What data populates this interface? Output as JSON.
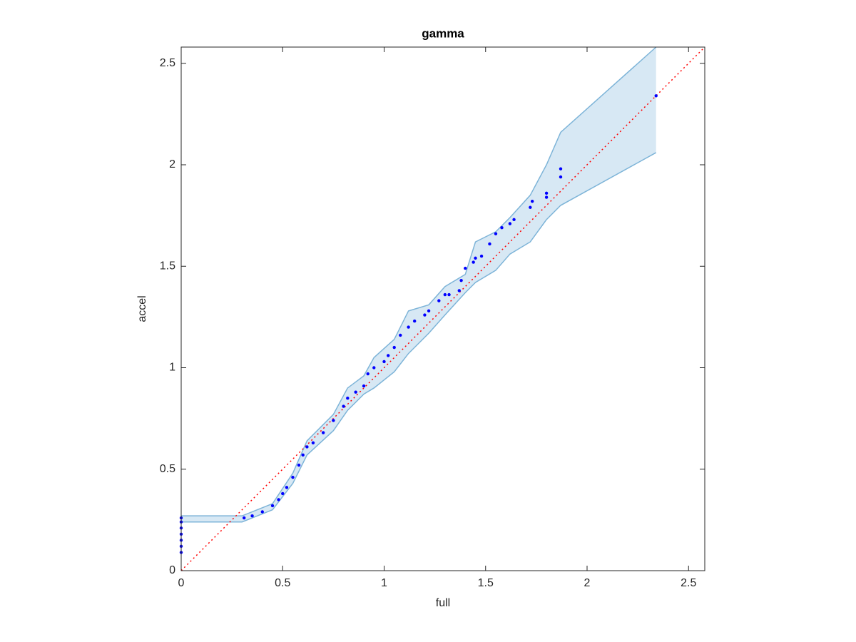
{
  "chart_data": {
    "type": "scatter",
    "title": "gamma",
    "x_label": "full",
    "y_label": "accel",
    "xlim": [
      0,
      2.58
    ],
    "ylim": [
      0,
      2.58
    ],
    "xticks": [
      0,
      0.5,
      1,
      1.5,
      2,
      2.5
    ],
    "yticks": [
      0,
      0.5,
      1,
      1.5,
      2,
      2.5
    ],
    "series": [
      {
        "color": "#0000ff",
        "x": [
          0,
          0,
          0,
          0,
          0,
          0,
          0,
          0.31,
          0.35,
          0.4,
          0.45,
          0.48,
          0.5,
          0.52,
          0.55,
          0.58,
          0.6,
          0.62,
          0.65,
          0.7,
          0.75,
          0.8,
          0.82,
          0.86,
          0.9,
          0.92,
          0.95,
          1.0,
          1.02,
          1.05,
          1.08,
          1.12,
          1.15,
          1.2,
          1.22,
          1.27,
          1.3,
          1.32,
          1.37,
          1.38,
          1.4,
          1.44,
          1.45,
          1.48,
          1.52,
          1.55,
          1.58,
          1.62,
          1.64,
          1.72,
          1.73,
          1.8,
          1.8,
          1.87,
          1.87,
          2.34
        ],
        "values": [
          0.09,
          0.12,
          0.15,
          0.18,
          0.21,
          0.24,
          0.26,
          0.26,
          0.27,
          0.29,
          0.32,
          0.35,
          0.38,
          0.41,
          0.46,
          0.52,
          0.57,
          0.61,
          0.63,
          0.68,
          0.74,
          0.81,
          0.85,
          0.88,
          0.91,
          0.97,
          1.0,
          1.03,
          1.06,
          1.1,
          1.16,
          1.2,
          1.23,
          1.26,
          1.28,
          1.33,
          1.36,
          1.36,
          1.38,
          1.43,
          1.49,
          1.52,
          1.54,
          1.55,
          1.61,
          1.66,
          1.69,
          1.71,
          1.73,
          1.79,
          1.82,
          1.84,
          1.86,
          1.94,
          1.98,
          2.34
        ]
      }
    ],
    "band": {
      "color": "#a6cde6",
      "edge_color": "#7db4d8",
      "x": [
        0,
        0.3,
        0.45,
        0.55,
        0.62,
        0.75,
        0.82,
        0.9,
        0.95,
        1.05,
        1.12,
        1.22,
        1.3,
        1.4,
        1.45,
        1.55,
        1.62,
        1.72,
        1.8,
        1.87,
        2.34
      ],
      "upper": [
        0.27,
        0.27,
        0.33,
        0.48,
        0.64,
        0.77,
        0.9,
        0.96,
        1.05,
        1.14,
        1.28,
        1.31,
        1.4,
        1.46,
        1.62,
        1.67,
        1.74,
        1.85,
        2.0,
        2.16,
        2.58
      ],
      "lower": [
        0.24,
        0.24,
        0.3,
        0.43,
        0.57,
        0.69,
        0.79,
        0.87,
        0.9,
        0.98,
        1.07,
        1.17,
        1.26,
        1.37,
        1.42,
        1.48,
        1.56,
        1.62,
        1.73,
        1.8,
        2.06
      ]
    },
    "reference_line": {
      "color": "#ff0000",
      "x": [
        0,
        2.58
      ],
      "y": [
        0,
        2.58
      ]
    }
  }
}
